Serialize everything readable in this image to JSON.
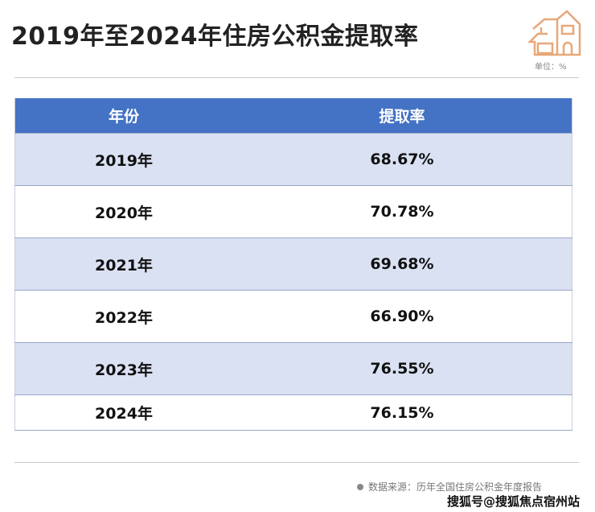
{
  "title": "2019年至2024年住房公积金提取率",
  "logo_icon": "house-icon",
  "unit_label": "单位：%",
  "colors": {
    "header": "#4472c4",
    "alt_row": "#dae1f3",
    "logo": "#e8a878"
  },
  "chart_data": {
    "type": "table",
    "title": "2019年至2024年住房公积金提取率",
    "columns": [
      "年份",
      "提取率"
    ],
    "rows": [
      [
        "2019年",
        "68.67%"
      ],
      [
        "2020年",
        "70.78%"
      ],
      [
        "2021年",
        "69.68%"
      ],
      [
        "2022年",
        "66.90%"
      ],
      [
        "2023年",
        "76.55%"
      ],
      [
        "2024年",
        "76.15%"
      ]
    ]
  },
  "source": "数据来源：历年全国住房公积金年度报告",
  "watermark": "搜狐号@搜狐焦点宿州站"
}
